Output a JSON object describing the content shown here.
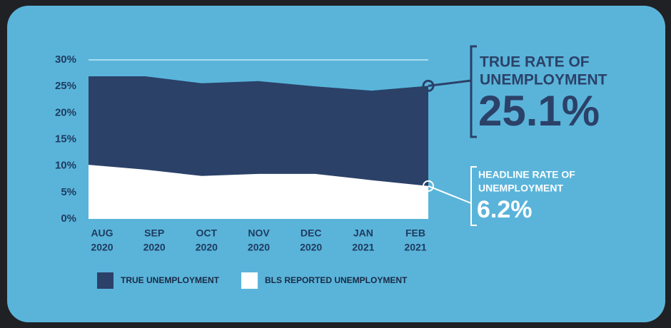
{
  "chart_data": {
    "type": "area",
    "categories": [
      [
        "AUG",
        "2020"
      ],
      [
        "SEP",
        "2020"
      ],
      [
        "OCT",
        "2020"
      ],
      [
        "NOV",
        "2020"
      ],
      [
        "DEC",
        "2020"
      ],
      [
        "JAN",
        "2021"
      ],
      [
        "FEB",
        "2021"
      ]
    ],
    "series": [
      {
        "name": "TRUE UNEMPLOYMENT",
        "color": "#2b4168",
        "values": [
          26.9,
          26.9,
          25.6,
          26.0,
          25.0,
          24.2,
          25.1
        ]
      },
      {
        "name": "BLS REPORTED UNEMPLOYMENT",
        "color": "#ffffff",
        "values": [
          10.2,
          9.3,
          8.1,
          8.5,
          8.5,
          7.3,
          6.2
        ]
      }
    ],
    "ylim": [
      0,
      30
    ],
    "yticks": [
      {
        "value": 0,
        "label": "0%"
      },
      {
        "value": 5,
        "label": "5%"
      },
      {
        "value": 10,
        "label": "10%"
      },
      {
        "value": 15,
        "label": "15%"
      },
      {
        "value": 20,
        "label": "20%"
      },
      {
        "value": 25,
        "label": "25%"
      },
      {
        "value": 30,
        "label": "30%"
      }
    ],
    "grid": "top",
    "annotations": [
      {
        "lines": [
          "TRUE RATE OF",
          "UNEMPLOYMENT"
        ],
        "label": "25.1%",
        "value": 25.1
      },
      {
        "lines": [
          "HEADLINE RATE OF",
          "UNEMPLOYMENT"
        ],
        "label": "6.2%",
        "value": 6.2
      }
    ]
  }
}
